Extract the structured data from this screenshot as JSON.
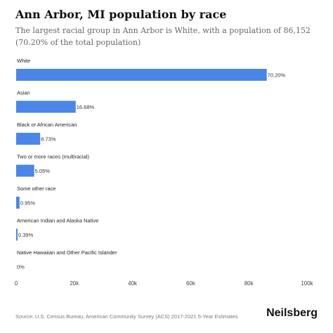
{
  "header": {
    "title": "Ann Arbor, MI population by race",
    "subtitle": "The largest racial group in Ann Arbor is White, with a population of 86,152 (70.20% of the total population)"
  },
  "footer": {
    "source": "Source: U.S. Census Bureau, American Community Survey (ACS) 2017-2021 5-Year Estimates",
    "brand": "Neilsberg"
  },
  "colors": {
    "bar": "#4a86e8",
    "axis_text": "#444444",
    "grid": "#cccccc"
  },
  "chart_data": {
    "type": "bar",
    "orientation": "horizontal",
    "categories": [
      "White",
      "Asian",
      "Black or African American",
      "Two or more races (multiracial)",
      "Some other race",
      "American Indian and Alaska Native",
      "Native Hawaiian and Other Pacific Islander"
    ],
    "values": [
      86152,
      20471,
      8259,
      6198,
      1166,
      479,
      0
    ],
    "labels": [
      "70.20%",
      "16.68%",
      "6.73%",
      "5.05%",
      "0.95%",
      "0.39%",
      "0%"
    ],
    "xlim": [
      0,
      100000
    ],
    "xticks": [
      0,
      20000,
      40000,
      60000,
      80000,
      100000
    ],
    "xtick_labels": [
      "0",
      "20k",
      "40k",
      "60k",
      "80k",
      "100k"
    ],
    "grid": false,
    "legend": "none"
  }
}
